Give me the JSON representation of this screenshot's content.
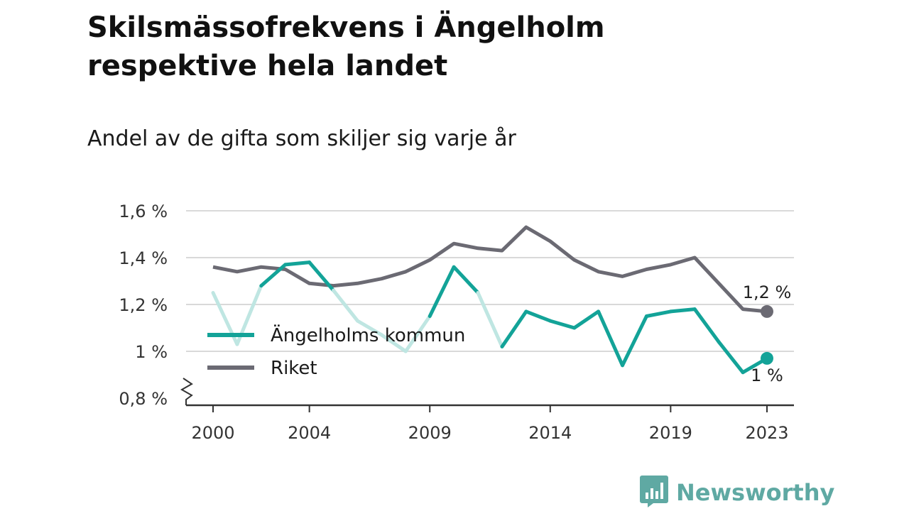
{
  "title": "Skilsmässofrekvens i Ängelholm respektive hela landet",
  "subtitle": "Andel av de gifta som skiljer sig varje år",
  "brand": {
    "name": "Newsworthy",
    "icon": "newsworthy-logo-icon"
  },
  "colors": {
    "angelholm": "#13a398",
    "angelholm_faded": "#bfe6e2",
    "riket": "#6b6a73",
    "grid": "#d9d9d9",
    "axis": "#333333",
    "brand": "#5fa9a3"
  },
  "chart_data": {
    "type": "line",
    "x": [
      2000,
      2001,
      2002,
      2003,
      2004,
      2005,
      2006,
      2007,
      2008,
      2009,
      2010,
      2011,
      2012,
      2013,
      2014,
      2015,
      2016,
      2017,
      2018,
      2019,
      2020,
      2021,
      2022,
      2023
    ],
    "x_ticks": [
      2000,
      2004,
      2009,
      2014,
      2019,
      2023
    ],
    "x_tick_labels": [
      "2000",
      "2004",
      "2009",
      "2014",
      "2019",
      "2023"
    ],
    "ylim": [
      0.8,
      1.6
    ],
    "y_ticks": [
      0.8,
      1.0,
      1.2,
      1.4,
      1.6
    ],
    "y_tick_labels": [
      "0,8 %",
      "1 %",
      "1,2 %",
      "1,4 %",
      "1,6 %"
    ],
    "y_axis_broken": true,
    "grid": true,
    "legend_position": "lower-left",
    "series": [
      {
        "name": "Ängelholms kommun",
        "values": [
          1.25,
          1.03,
          1.28,
          1.37,
          1.38,
          1.26,
          1.13,
          1.07,
          1.0,
          1.15,
          1.36,
          1.25,
          1.02,
          1.17,
          1.13,
          1.1,
          1.17,
          0.94,
          1.15,
          1.17,
          1.18,
          1.04,
          0.91,
          0.97
        ],
        "faded_segments_from_year": [
          2000,
          2005,
          2011
        ],
        "faded_segments_to_year": [
          2002,
          2009,
          2012
        ],
        "end_label": "1 %"
      },
      {
        "name": "Riket",
        "values": [
          1.36,
          1.34,
          1.36,
          1.35,
          1.29,
          1.28,
          1.29,
          1.31,
          1.34,
          1.39,
          1.46,
          1.44,
          1.43,
          1.53,
          1.47,
          1.39,
          1.34,
          1.32,
          1.35,
          1.37,
          1.4,
          1.29,
          1.18,
          1.17
        ],
        "end_label": "1,2 %"
      }
    ]
  }
}
